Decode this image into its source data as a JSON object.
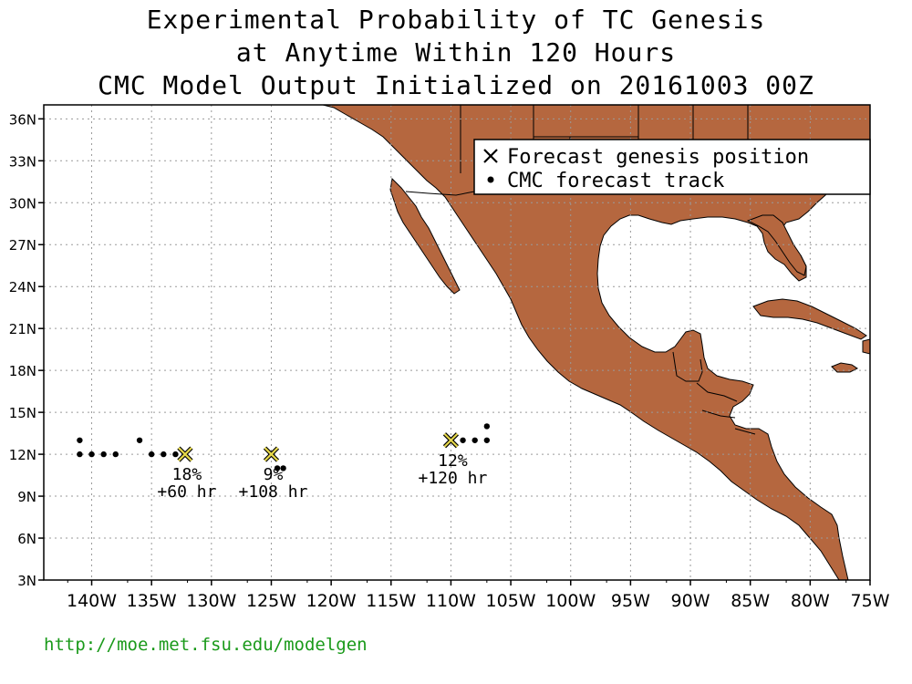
{
  "header": {
    "line1": "Experimental Probability of TC Genesis",
    "line2": "at Anytime Within 120 Hours",
    "line3": "CMC Model Output Initialized on 20161003 00Z"
  },
  "legend": {
    "genesis_label": "Forecast genesis position",
    "track_label": "CMC forecast track"
  },
  "axes": {
    "lon_labels": [
      "140W",
      "135W",
      "130W",
      "125W",
      "120W",
      "115W",
      "110W",
      "105W",
      "100W",
      "95W",
      "90W",
      "85W",
      "80W",
      "75W"
    ],
    "lat_labels": [
      "36N",
      "33N",
      "30N",
      "27N",
      "24N",
      "21N",
      "18N",
      "15N",
      "12N",
      "9N",
      "6N",
      "3N"
    ],
    "lon_range": [
      -144,
      -75
    ],
    "lat_range": [
      3,
      37
    ]
  },
  "colors": {
    "land": "#b5673f",
    "genesis_marker": "#e6d84a",
    "grid": "#9a9a9a",
    "footer": "#1a9a1a"
  },
  "genesis": [
    {
      "lon": -132.2,
      "lat": 12.0,
      "prob": "18%",
      "lead": "+60 hr"
    },
    {
      "lon": -125.0,
      "lat": 12.0,
      "prob": "9%",
      "lead": "+108 hr"
    },
    {
      "lon": -110.0,
      "lat": 13.0,
      "prob": "12%",
      "lead": "+120 hr"
    }
  ],
  "tracks": [
    [
      [
        -141,
        13
      ],
      [
        -141,
        12
      ],
      [
        -140,
        12
      ],
      [
        -139,
        12
      ],
      [
        -138,
        12
      ]
    ],
    [
      [
        -136,
        13
      ],
      [
        -135,
        12
      ],
      [
        -134,
        12
      ],
      [
        -133,
        12
      ],
      [
        -132.2,
        12
      ]
    ],
    [
      [
        -125,
        12
      ],
      [
        -124.5,
        11
      ],
      [
        -124,
        11
      ]
    ],
    [
      [
        -110,
        13
      ],
      [
        -109,
        13
      ],
      [
        -108,
        13
      ],
      [
        -107,
        13
      ],
      [
        -107,
        14
      ]
    ]
  ],
  "footer": {
    "url": "http://moe.met.fsu.edu/modelgen"
  }
}
